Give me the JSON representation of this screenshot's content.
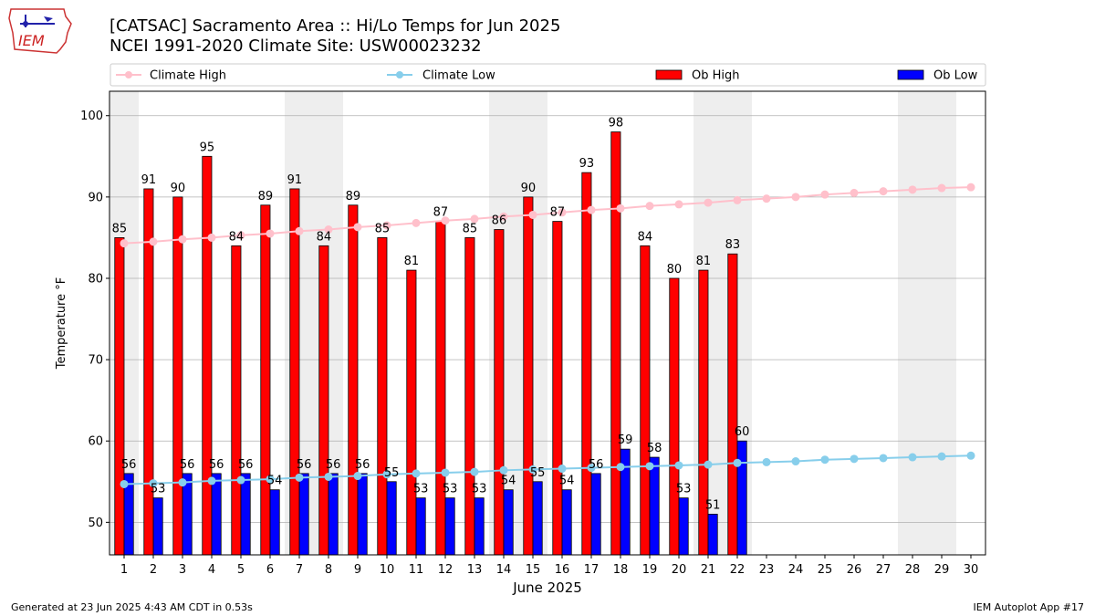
{
  "logo_text": "IEM",
  "title_line1": "[CATSAC] Sacramento Area :: Hi/Lo Temps for Jun 2025",
  "title_line2": "NCEI 1991-2020 Climate Site: USW00023232",
  "footer_left": "Generated at 23 Jun 2025 4:43 AM CDT in 0.53s",
  "footer_right": "IEM Autoplot App #17",
  "colors": {
    "climate_high": "#ffc0cb",
    "climate_low": "#87ceeb",
    "ob_high": "#ff0000",
    "ob_low": "#0000ff",
    "weekend_shade": "#eeeeee",
    "grid": "#b0b0b0"
  },
  "chart_data": {
    "type": "bar",
    "xlabel": "June 2025",
    "ylabel": "Temperature °F",
    "xlim": [
      0.5,
      30.5
    ],
    "ylim": [
      46,
      103
    ],
    "yticks": [
      50,
      60,
      70,
      80,
      90,
      100
    ],
    "grid": "horizontal",
    "legend_position": "top",
    "legend": [
      "Climate High",
      "Climate Low",
      "Ob High",
      "Ob Low"
    ],
    "days": [
      1,
      2,
      3,
      4,
      5,
      6,
      7,
      8,
      9,
      10,
      11,
      12,
      13,
      14,
      15,
      16,
      17,
      18,
      19,
      20,
      21,
      22,
      23,
      24,
      25,
      26,
      27,
      28,
      29,
      30
    ],
    "weekend_spans": [
      [
        1,
        1
      ],
      [
        7,
        8
      ],
      [
        14,
        15
      ],
      [
        21,
        22
      ],
      [
        28,
        29
      ]
    ],
    "series": [
      {
        "name": "Ob High",
        "kind": "bar",
        "values": [
          85,
          91,
          90,
          95,
          84,
          89,
          91,
          84,
          89,
          85,
          81,
          87,
          85,
          86,
          90,
          87,
          93,
          98,
          84,
          80,
          81,
          83
        ]
      },
      {
        "name": "Ob Low",
        "kind": "bar",
        "values": [
          56,
          53,
          56,
          56,
          56,
          54,
          56,
          56,
          56,
          55,
          53,
          53,
          53,
          54,
          55,
          54,
          56,
          59,
          58,
          53,
          51,
          60
        ]
      },
      {
        "name": "Climate High",
        "kind": "line",
        "values": [
          84.3,
          84.5,
          84.8,
          85.0,
          85.3,
          85.5,
          85.8,
          86.0,
          86.3,
          86.5,
          86.8,
          87.1,
          87.3,
          87.6,
          87.8,
          88.1,
          88.4,
          88.6,
          88.9,
          89.1,
          89.3,
          89.6,
          89.8,
          90.0,
          90.3,
          90.5,
          90.7,
          90.9,
          91.1,
          91.2
        ]
      },
      {
        "name": "Climate Low",
        "kind": "line",
        "values": [
          54.7,
          54.8,
          54.9,
          55.1,
          55.2,
          55.3,
          55.5,
          55.6,
          55.7,
          55.9,
          56.0,
          56.1,
          56.2,
          56.4,
          56.5,
          56.6,
          56.7,
          56.8,
          56.9,
          57.0,
          57.1,
          57.3,
          57.4,
          57.5,
          57.7,
          57.8,
          57.9,
          58.0,
          58.1,
          58.2
        ]
      }
    ]
  }
}
